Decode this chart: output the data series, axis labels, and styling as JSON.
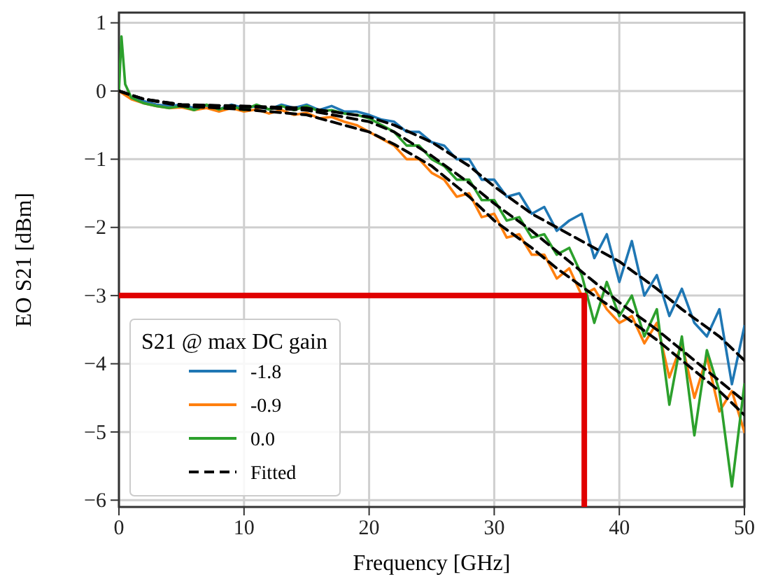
{
  "chart_data": {
    "type": "line",
    "xlabel": "Frequency [GHz]",
    "ylabel": "EO S21 [dBm]",
    "legend_title": "S21 @ max DC gain",
    "legend": "bottom left",
    "grid": true,
    "xlim": [
      0,
      50
    ],
    "ylim": [
      -6.1,
      1.15
    ],
    "xticks": [
      0,
      10,
      20,
      30,
      40,
      50
    ],
    "yticks": [
      {
        "value": -6,
        "label": "−6"
      },
      {
        "value": -5,
        "label": "−5"
      },
      {
        "value": -4,
        "label": "−4"
      },
      {
        "value": -3,
        "label": "−3"
      },
      {
        "value": -2,
        "label": "−2"
      },
      {
        "value": -1,
        "label": "−1"
      },
      0,
      1
    ],
    "series": [
      {
        "name": "-1.8",
        "color": "#1f77b4",
        "x": [
          0,
          1,
          2,
          3,
          4,
          5,
          6,
          7,
          8,
          9,
          10,
          11,
          12,
          13,
          14,
          15,
          16,
          17,
          18,
          19,
          20,
          21,
          22,
          23,
          24,
          25,
          26,
          27,
          28,
          29,
          30,
          31,
          32,
          33,
          34,
          35,
          36,
          37,
          38,
          39,
          40,
          41,
          42,
          43,
          44,
          45,
          46,
          47,
          48,
          49,
          50
        ],
        "values": [
          0,
          -0.1,
          -0.15,
          -0.2,
          -0.22,
          -0.2,
          -0.25,
          -0.22,
          -0.27,
          -0.2,
          -0.25,
          -0.22,
          -0.27,
          -0.2,
          -0.25,
          -0.2,
          -0.28,
          -0.22,
          -0.3,
          -0.3,
          -0.35,
          -0.42,
          -0.45,
          -0.6,
          -0.6,
          -0.75,
          -0.8,
          -1.0,
          -1.0,
          -1.3,
          -1.3,
          -1.55,
          -1.5,
          -1.8,
          -1.7,
          -2.05,
          -1.9,
          -1.8,
          -2.45,
          -2.1,
          -2.8,
          -2.2,
          -3.0,
          -2.7,
          -3.3,
          -2.9,
          -3.4,
          -3.6,
          -3.2,
          -4.3,
          -3.45
        ]
      },
      {
        "name": "-0.9",
        "color": "#ff7f0e",
        "x": [
          0,
          1,
          2,
          3,
          4,
          5,
          6,
          7,
          8,
          9,
          10,
          11,
          12,
          13,
          14,
          15,
          16,
          17,
          18,
          19,
          20,
          21,
          22,
          23,
          24,
          25,
          26,
          27,
          28,
          29,
          30,
          31,
          32,
          33,
          34,
          35,
          36,
          37,
          38,
          39,
          40,
          41,
          42,
          43,
          44,
          45,
          46,
          47,
          48,
          49,
          50
        ],
        "values": [
          0,
          -0.12,
          -0.18,
          -0.22,
          -0.25,
          -0.24,
          -0.28,
          -0.25,
          -0.3,
          -0.25,
          -0.3,
          -0.27,
          -0.33,
          -0.28,
          -0.35,
          -0.32,
          -0.4,
          -0.38,
          -0.45,
          -0.5,
          -0.6,
          -0.7,
          -0.8,
          -1.0,
          -1.0,
          -1.2,
          -1.3,
          -1.55,
          -1.5,
          -1.85,
          -1.8,
          -2.15,
          -2.1,
          -2.4,
          -2.4,
          -2.75,
          -2.6,
          -3.0,
          -2.9,
          -3.2,
          -3.4,
          -3.3,
          -3.7,
          -3.4,
          -4.2,
          -3.7,
          -4.5,
          -3.9,
          -4.7,
          -4.4,
          -5.0
        ]
      },
      {
        "name": "0.0",
        "color": "#2ca02c",
        "x": [
          0,
          0.2,
          0.5,
          1,
          2,
          3,
          4,
          5,
          6,
          7,
          8,
          9,
          10,
          11,
          12,
          13,
          14,
          15,
          16,
          17,
          18,
          19,
          20,
          21,
          22,
          23,
          24,
          25,
          26,
          27,
          28,
          29,
          30,
          31,
          32,
          33,
          34,
          35,
          36,
          37,
          38,
          39,
          40,
          41,
          42,
          43,
          44,
          45,
          46,
          47,
          48,
          49,
          50
        ],
        "values": [
          0,
          0.8,
          0.1,
          -0.1,
          -0.18,
          -0.22,
          -0.25,
          -0.22,
          -0.28,
          -0.2,
          -0.27,
          -0.22,
          -0.28,
          -0.2,
          -0.27,
          -0.22,
          -0.28,
          -0.22,
          -0.3,
          -0.28,
          -0.33,
          -0.35,
          -0.4,
          -0.5,
          -0.6,
          -0.8,
          -0.8,
          -1.0,
          -1.1,
          -1.3,
          -1.3,
          -1.6,
          -1.6,
          -1.9,
          -1.85,
          -2.15,
          -2.1,
          -2.4,
          -2.3,
          -2.7,
          -3.4,
          -2.8,
          -3.3,
          -3.0,
          -3.6,
          -3.2,
          -4.6,
          -3.6,
          -5.05,
          -3.8,
          -4.4,
          -5.8,
          -4.3
        ]
      },
      {
        "name": "Fitted",
        "color": "#000000",
        "line_style": "dashed",
        "x": [
          0,
          2,
          5,
          10,
          15,
          20,
          22,
          25,
          28,
          30,
          33,
          35,
          38,
          40,
          43,
          45,
          48,
          50
        ],
        "values": [
          0,
          -0.12,
          -0.2,
          -0.22,
          -0.25,
          -0.38,
          -0.5,
          -0.75,
          -1.1,
          -1.4,
          -1.8,
          -2.0,
          -2.3,
          -2.5,
          -2.9,
          -3.2,
          -3.6,
          -3.95
        ]
      },
      {
        "color": "#000000",
        "line_style": "dashed",
        "x": [
          0,
          2,
          5,
          10,
          15,
          20,
          22,
          25,
          28,
          30,
          33,
          35,
          38,
          40,
          43,
          45,
          48,
          50
        ],
        "values": [
          0,
          -0.12,
          -0.2,
          -0.23,
          -0.28,
          -0.45,
          -0.6,
          -0.95,
          -1.35,
          -1.65,
          -2.05,
          -2.35,
          -2.8,
          -3.1,
          -3.5,
          -3.8,
          -4.25,
          -4.55
        ]
      },
      {
        "color": "#000000",
        "line_style": "dashed",
        "x": [
          0,
          2,
          5,
          10,
          15,
          20,
          22,
          25,
          28,
          30,
          33,
          35,
          38,
          40,
          43,
          45,
          48,
          50
        ],
        "values": [
          0,
          -0.12,
          -0.22,
          -0.27,
          -0.35,
          -0.6,
          -0.78,
          -1.1,
          -1.55,
          -1.9,
          -2.3,
          -2.6,
          -3.0,
          -3.25,
          -3.65,
          -3.95,
          -4.4,
          -4.75
        ]
      },
      {
        "color": "#e00000",
        "x": [
          0,
          37.2,
          37.2
        ],
        "values": [
          -3,
          -3,
          -6.1
        ]
      }
    ]
  }
}
